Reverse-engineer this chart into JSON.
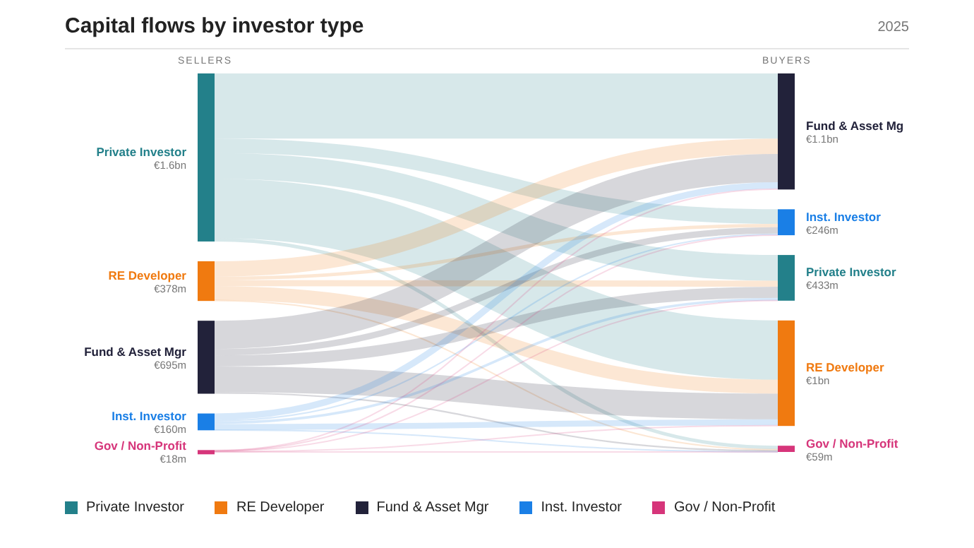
{
  "chart_data": {
    "type": "other",
    "title": "Capital flows by investor type",
    "subtitle": "2025",
    "annotations": [
      "SELLERS",
      "BUYERS"
    ],
    "categories": [
      "Private Investor",
      "RE Developer",
      "Fund & Asset Mgr",
      "Inst. Investor",
      "Gov / Non-Profit",
      "Fund & Asset Mg",
      "Inst. Investor",
      "Private Investor",
      "RE Developer",
      "Gov / Non-Profit"
    ],
    "colors": [
      "#23808a",
      "#f07a10",
      "#22223a",
      "#1a7fe6",
      "#d6357a",
      "#22223a",
      "#1a7fe6",
      "#23808a",
      "#f07a10",
      "#d6357a"
    ],
    "values": [
      1600000000,
      378000000,
      695000000,
      160000000,
      18000000,
      1100000000,
      246000000,
      433000000,
      1000000000,
      59000000
    ],
    "value_labels": [
      "€1.6bn",
      "€378m",
      "€695m",
      "€160m",
      "€18m",
      "€1.1bn",
      "€246m",
      "€433m",
      "€1bn",
      "€59m"
    ]
  }
}
